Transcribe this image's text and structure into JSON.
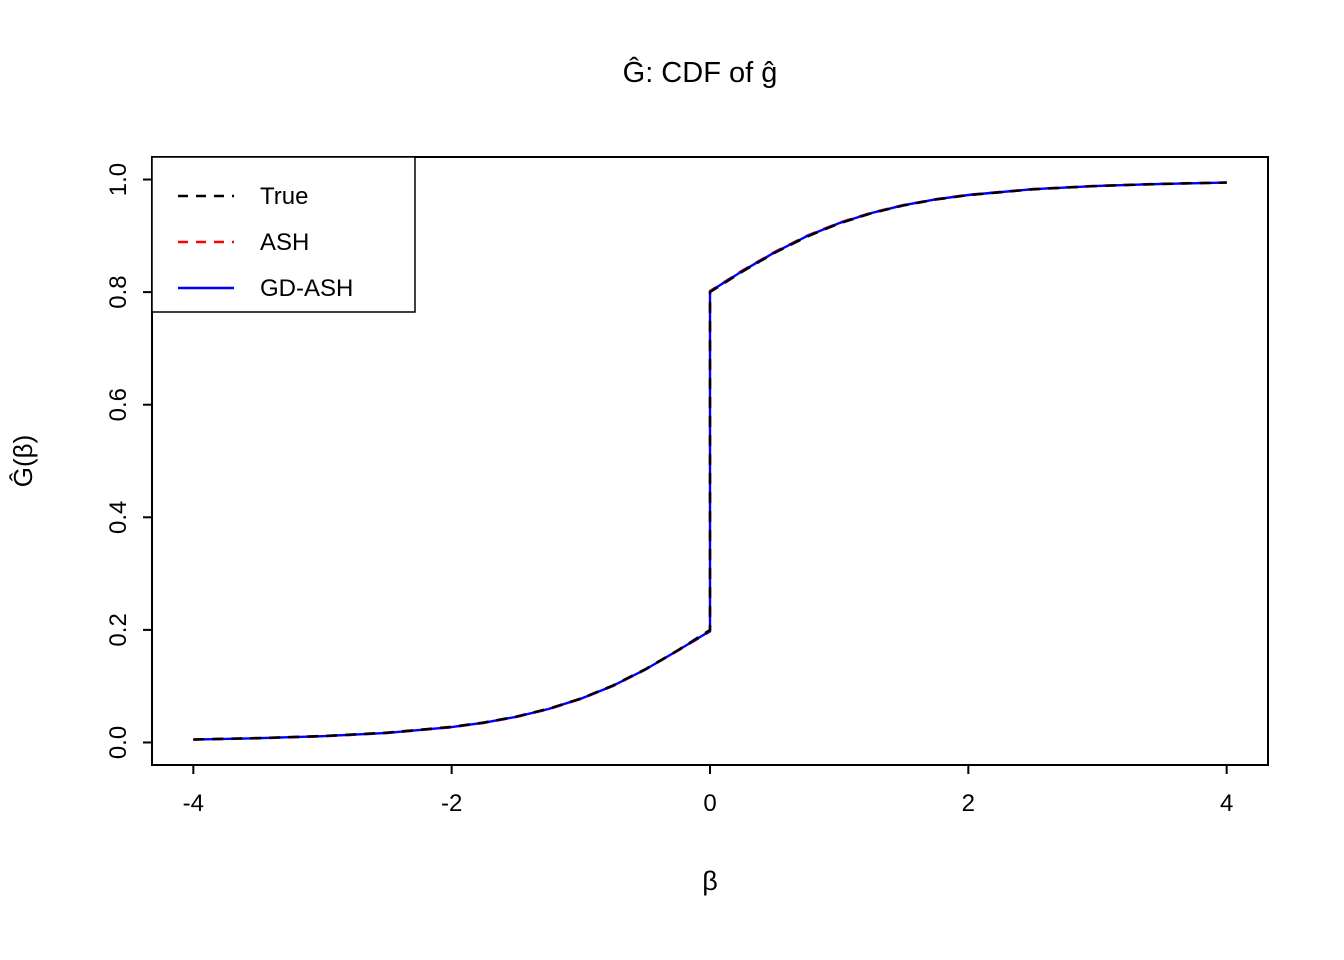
{
  "figure": {
    "background": "#ffffff",
    "accent_colors": {
      "true": "#000000",
      "ash": "#FF0000",
      "gdash": "#0000FF"
    }
  },
  "chart_data": {
    "type": "line",
    "title": "Ĝ: CDF of ĝ",
    "xlabel": "β",
    "ylabel": "Ĝ(β)",
    "xlim": [
      -4,
      4
    ],
    "ylim": [
      0,
      1
    ],
    "x_ticks": [
      -4,
      -2,
      0,
      2,
      4
    ],
    "y_ticks": [
      0.0,
      0.2,
      0.4,
      0.6,
      0.8,
      1.0
    ],
    "grid": false,
    "legend_position": "top-left",
    "legend": [
      {
        "label": "True",
        "color": "#000000",
        "line_style": "dashed"
      },
      {
        "label": "ASH",
        "color": "#FF0000",
        "line_style": "dashed"
      },
      {
        "label": "GD-ASH",
        "color": "#0000FF",
        "line_style": "solid"
      }
    ],
    "series": [
      {
        "name": "True",
        "color": "#000000",
        "line_style": "dashed",
        "points": [
          [
            -4,
            0.0055
          ],
          [
            -3.5,
            0.0079
          ],
          [
            -3,
            0.0115
          ],
          [
            -2.5,
            0.0175
          ],
          [
            -2,
            0.0279
          ],
          [
            -1.75,
            0.0357
          ],
          [
            -1.5,
            0.0461
          ],
          [
            -1.25,
            0.06
          ],
          [
            -1,
            0.0782
          ],
          [
            -0.75,
            0.1015
          ],
          [
            -0.5,
            0.1303
          ],
          [
            -0.25,
            0.1638
          ],
          [
            0,
            0.2
          ],
          [
            0,
            0.8
          ],
          [
            0.25,
            0.8363
          ],
          [
            0.5,
            0.8697
          ],
          [
            0.75,
            0.8985
          ],
          [
            1,
            0.9218
          ],
          [
            1.25,
            0.94
          ],
          [
            1.5,
            0.9539
          ],
          [
            1.75,
            0.9643
          ],
          [
            2,
            0.9721
          ],
          [
            2.5,
            0.9825
          ],
          [
            3,
            0.9885
          ],
          [
            3.5,
            0.9921
          ],
          [
            4,
            0.9945
          ]
        ]
      },
      {
        "name": "ASH",
        "color": "#FF0000",
        "line_style": "dashed",
        "points": [
          [
            -4,
            0.005
          ],
          [
            -3.5,
            0.0073
          ],
          [
            -3,
            0.0108
          ],
          [
            -2.5,
            0.0167
          ],
          [
            -2,
            0.027
          ],
          [
            -1.75,
            0.0348
          ],
          [
            -1.5,
            0.0452
          ],
          [
            -1.25,
            0.059
          ],
          [
            -1,
            0.0772
          ],
          [
            -0.75,
            0.1004
          ],
          [
            -0.5,
            0.1292
          ],
          [
            -0.25,
            0.1628
          ],
          [
            0,
            0.197
          ],
          [
            0,
            0.802
          ],
          [
            0.25,
            0.8383
          ],
          [
            0.5,
            0.8715
          ],
          [
            0.75,
            0.9002
          ],
          [
            1,
            0.9233
          ],
          [
            1.25,
            0.9413
          ],
          [
            1.5,
            0.955
          ],
          [
            1.75,
            0.9653
          ],
          [
            2,
            0.973
          ],
          [
            2.5,
            0.9832
          ],
          [
            3,
            0.989
          ],
          [
            3.5,
            0.9925
          ],
          [
            4,
            0.9948
          ]
        ]
      },
      {
        "name": "GD-ASH",
        "color": "#0000FF",
        "line_style": "solid",
        "points": [
          [
            -4,
            0.0052
          ],
          [
            -3.5,
            0.0076
          ],
          [
            -3,
            0.0111
          ],
          [
            -2.5,
            0.0171
          ],
          [
            -2,
            0.0274
          ],
          [
            -1.75,
            0.0352
          ],
          [
            -1.5,
            0.0456
          ],
          [
            -1.25,
            0.0595
          ],
          [
            -1,
            0.0777
          ],
          [
            -0.75,
            0.1009
          ],
          [
            -0.5,
            0.1297
          ],
          [
            -0.25,
            0.1633
          ],
          [
            0,
            0.198
          ],
          [
            0,
            0.801
          ],
          [
            0.25,
            0.8373
          ],
          [
            0.5,
            0.8706
          ],
          [
            0.75,
            0.8993
          ],
          [
            1,
            0.9225
          ],
          [
            1.25,
            0.9406
          ],
          [
            1.5,
            0.9544
          ],
          [
            1.75,
            0.9648
          ],
          [
            2,
            0.9725
          ],
          [
            2.5,
            0.9828
          ],
          [
            3,
            0.9887
          ],
          [
            3.5,
            0.9923
          ],
          [
            4,
            0.9946
          ]
        ]
      }
    ]
  }
}
